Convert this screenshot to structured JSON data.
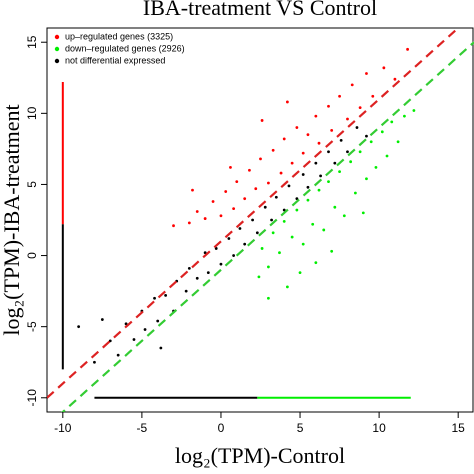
{
  "chart_data": {
    "type": "scatter",
    "title": "IBA-treatment  VS Control",
    "xlabel": "log₂(TPM)-Control",
    "ylabel": "log₂(TPM)-IBA-treatment",
    "xlim": [
      -11,
      16
    ],
    "ylim": [
      -11,
      16
    ],
    "xticks": [
      -10,
      -5,
      0,
      5,
      10,
      15
    ],
    "yticks": [
      -10,
      -5,
      0,
      5,
      10,
      15
    ],
    "grid": false,
    "legend": "top-left",
    "series": [
      {
        "name": "up–regulated genes (3325)",
        "color": "#ff0000",
        "x": [
          -2,
          -1.5,
          -1,
          -0.5,
          0,
          0.3,
          0.8,
          1,
          1.5,
          1.8,
          2.2,
          2.5,
          3,
          3.3,
          3.8,
          4,
          4.5,
          4.8,
          5.2,
          5.5,
          6,
          6.2,
          6.8,
          7,
          7.5,
          8,
          8.3,
          8.8,
          9.2,
          9.6,
          10.3,
          11,
          -3,
          -1.8,
          0.6,
          2.6,
          4.2,
          11.8
        ],
        "values": [
          2.3,
          3.1,
          2.6,
          3.8,
          2.8,
          4.5,
          3.3,
          5.2,
          4,
          6,
          4.7,
          6.8,
          5.1,
          7.4,
          5.8,
          8.2,
          6.5,
          9,
          7.2,
          8.5,
          9.8,
          7.9,
          10.5,
          8.8,
          11.2,
          9.6,
          12,
          10.4,
          12.8,
          11.2,
          13.2,
          12.4,
          2.1,
          4.6,
          6.2,
          9.5,
          10.8,
          14.5
        ]
      },
      {
        "name": "down–regulated genes (2926)",
        "color": "#00ee00",
        "x": [
          2.4,
          2.6,
          3,
          3.3,
          3.7,
          4,
          4.2,
          4.5,
          4.8,
          5.2,
          5.5,
          5.8,
          6.2,
          6.5,
          6.8,
          7.2,
          7.5,
          7.8,
          8.2,
          8.5,
          8.8,
          9.2,
          9.5,
          9.8,
          10.2,
          10.5,
          10.8,
          11.2,
          11.6,
          3,
          5,
          7,
          9,
          6,
          12.2
        ],
        "values": [
          -1.5,
          0.5,
          -0.8,
          1.6,
          0.2,
          2.4,
          -2.2,
          1.3,
          3.2,
          0.8,
          3.9,
          2.2,
          4.6,
          1.8,
          5.2,
          3.4,
          5.9,
          2.8,
          6.6,
          4.4,
          7.3,
          5.4,
          8,
          6.2,
          8.7,
          7,
          9.4,
          8,
          9.8,
          -3,
          -1.2,
          0.3,
          3,
          -0.5,
          10.2
        ]
      },
      {
        "name": "not differential expressed",
        "color": "#000000",
        "x": [
          -8,
          -7,
          -6.5,
          -6,
          -5.5,
          -5,
          -4.8,
          -4.2,
          -4,
          -3.5,
          -3,
          -2.8,
          -2.2,
          -2,
          -1.5,
          -1,
          -0.8,
          -0.3,
          0,
          0.5,
          0.8,
          1.2,
          1.5,
          2,
          2.3,
          2.8,
          3.2,
          3.5,
          4,
          4.3,
          4.8,
          5.2,
          5.5,
          6,
          6.3,
          6.8,
          7.2,
          7.6,
          8,
          8.6,
          9.2,
          -7.5,
          -3.8,
          -9
        ],
        "values": [
          -7.5,
          -6,
          -7,
          -4.8,
          -5.9,
          -3.9,
          -5.2,
          -3,
          -4.6,
          -2.8,
          -3.9,
          -1.8,
          -2.5,
          -0.9,
          -1.6,
          0.2,
          -1.2,
          0.5,
          -0.6,
          1.2,
          0,
          1.9,
          0.8,
          2.5,
          1.6,
          3.4,
          2.5,
          4.1,
          3.2,
          4.9,
          4,
          5.7,
          4.8,
          6.5,
          5.6,
          7.3,
          6.5,
          8.1,
          7.3,
          9,
          8.4,
          -4.5,
          -6.5,
          -5
        ]
      }
    ],
    "segments": [
      {
        "color": "#ff0000",
        "x": [
          -10,
          -10
        ],
        "y": [
          2.2,
          12.2
        ]
      },
      {
        "color": "#000000",
        "x": [
          -10,
          -10
        ],
        "y": [
          -8,
          2.2
        ]
      },
      {
        "color": "#000000",
        "x": [
          -8,
          2.3
        ],
        "y": [
          -10,
          -10
        ]
      },
      {
        "color": "#00ee00",
        "x": [
          2.3,
          12
        ],
        "y": [
          -10,
          -10
        ]
      }
    ],
    "reference_lines": [
      {
        "slope": 1,
        "intercept": 1,
        "color": "#dd2222"
      },
      {
        "slope": 1,
        "intercept": -1,
        "color": "#33cc33"
      }
    ]
  }
}
